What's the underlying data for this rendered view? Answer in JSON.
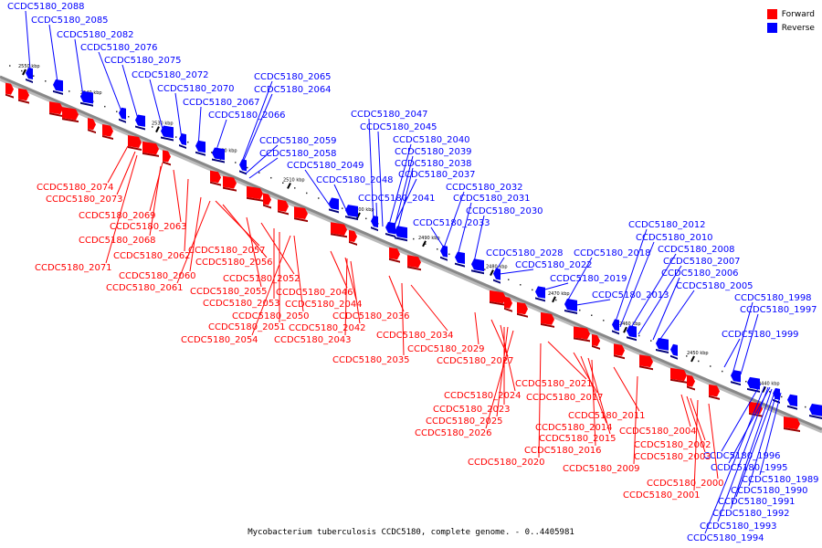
{
  "legend": {
    "forward": "Forward",
    "reverse": "Reverse"
  },
  "colors": {
    "forward": "#ff0000",
    "reverse": "#0000ff",
    "backbone": "#888888"
  },
  "caption": "Mycobacterium tuberculosis CCDC5180, complete genome. - 0..4405981",
  "axis_ticks": [
    "2550 kbp",
    "2540 kbp",
    "2530 kbp",
    "2520 kbp",
    "2510 kbp",
    "2500 kbp",
    "2490 kbp",
    "2480 kbp",
    "2470 kbp",
    "2460 kbp",
    "2450 kbp",
    "2440 kbp"
  ],
  "reverse_labels": [
    "CCDC5180_2088",
    "CCDC5180_2085",
    "CCDC5180_2082",
    "CCDC5180_2076",
    "CCDC5180_2075",
    "CCDC5180_2072",
    "CCDC5180_2070",
    "CCDC5180_2067",
    "CCDC5180_2066",
    "CCDC5180_2065",
    "CCDC5180_2064",
    "CCDC5180_2059",
    "CCDC5180_2058",
    "CCDC5180_2049",
    "CCDC5180_2048",
    "CCDC5180_2047",
    "CCDC5180_2045",
    "CCDC5180_2040",
    "CCDC5180_2039",
    "CCDC5180_2038",
    "CCDC5180_2037",
    "CCDC5180_2041",
    "CCDC5180_2032",
    "CCDC5180_2031",
    "CCDC5180_2030",
    "CCDC5180_2033",
    "CCDC5180_2028",
    "CCDC5180_2022",
    "CCDC5180_2019",
    "CCDC5180_2018",
    "CCDC5180_2013",
    "CCDC5180_2012",
    "CCDC5180_2010",
    "CCDC5180_2008",
    "CCDC5180_2007",
    "CCDC5180_2006",
    "CCDC5180_2005",
    "CCDC5180_1998",
    "CCDC5180_1997",
    "CCDC5180_1999",
    "CCDC5180_1996",
    "CCDC5180_1995",
    "CCDC5180_1989",
    "CCDC5180_1990",
    "CCDC5180_1991",
    "CCDC5180_1992",
    "CCDC5180_1993",
    "CCDC5180_1994"
  ],
  "forward_labels": [
    "CCDC5180_2074",
    "CCDC5180_2073",
    "CCDC5180_2069",
    "CCDC5180_2063",
    "CCDC5180_2068",
    "CCDC5180_2062",
    "CCDC5180_2071",
    "CCDC5180_2057",
    "CCDC5180_2056",
    "CCDC5180_2060",
    "CCDC5180_2061",
    "CCDC5180_2052",
    "CCDC5180_2055",
    "CCDC5180_2046",
    "CCDC5180_2053",
    "CCDC5180_2044",
    "CCDC5180_2050",
    "CCDC5180_2042",
    "CCDC5180_2051",
    "CCDC5180_2036",
    "CCDC5180_2054",
    "CCDC5180_2043",
    "CCDC5180_2034",
    "CCDC5180_2035",
    "CCDC5180_2029",
    "CCDC5180_2027",
    "CCDC5180_2021",
    "CCDC5180_2024",
    "CCDC5180_2017",
    "CCDC5180_2023",
    "CCDC5180_2011",
    "CCDC5180_2025",
    "CCDC5180_2014",
    "CCDC5180_2026",
    "CCDC5180_2015",
    "CCDC5180_2016",
    "CCDC5180_2020",
    "CCDC5180_2009",
    "CCDC5180_2004",
    "CCDC5180_2002",
    "CCDC5180_2003",
    "CCDC5180_2000",
    "CCDC5180_2001"
  ]
}
